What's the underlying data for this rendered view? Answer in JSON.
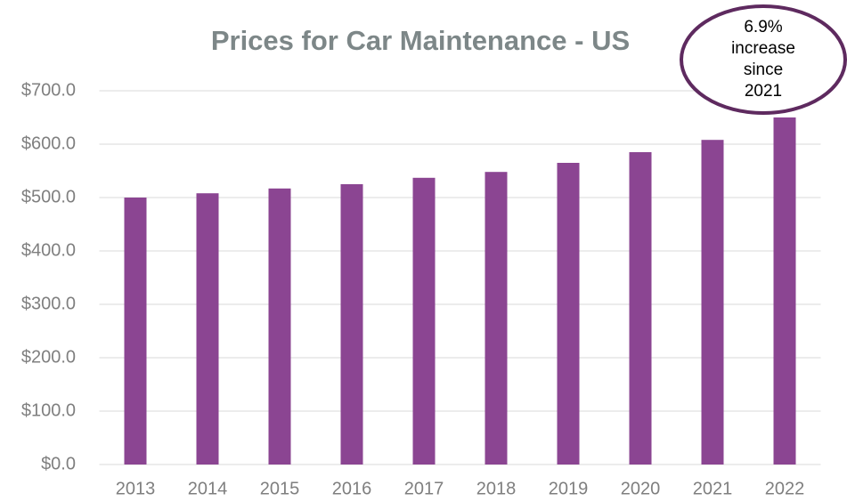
{
  "chart_data": {
    "type": "bar",
    "title": "Prices for Car Maintenance - US",
    "annotation": "6.9% increase since 2021",
    "categories": [
      "2013",
      "2014",
      "2015",
      "2016",
      "2017",
      "2018",
      "2019",
      "2020",
      "2021",
      "2022"
    ],
    "values": [
      500,
      508,
      517,
      525,
      537,
      548,
      565,
      585,
      608,
      650
    ],
    "color": "#8b4592",
    "ylim": [
      0,
      700
    ],
    "yticks": [
      {
        "value": 0,
        "label": "$0.0"
      },
      {
        "value": 100,
        "label": "$100.0"
      },
      {
        "value": 200,
        "label": "$200.0"
      },
      {
        "value": 300,
        "label": "$300.0"
      },
      {
        "value": 400,
        "label": "$400.0"
      },
      {
        "value": 500,
        "label": "$500.0"
      },
      {
        "value": 600,
        "label": "$600.0"
      },
      {
        "value": 700,
        "label": "$700.0"
      }
    ],
    "grid": true
  }
}
